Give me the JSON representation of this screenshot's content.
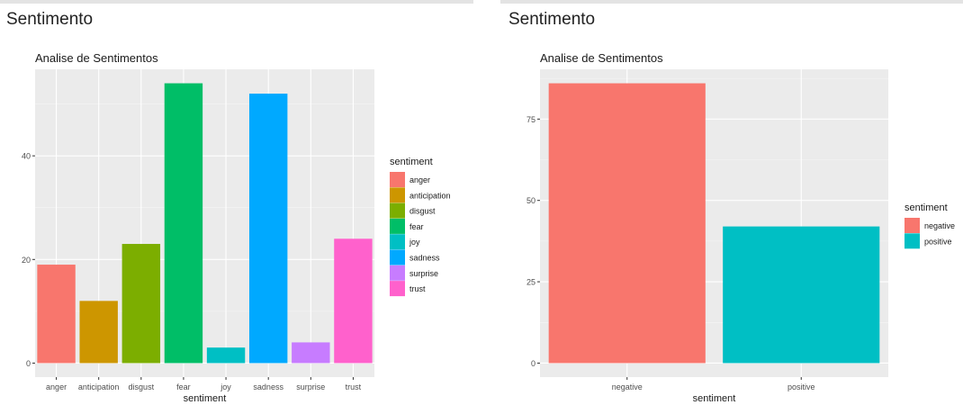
{
  "panels": [
    {
      "section_title": "Sentimento",
      "chart_data": {
        "type": "bar",
        "title": "Analise de Sentimentos",
        "xlabel": "sentiment",
        "ylabel": "",
        "categories": [
          "anger",
          "anticipation",
          "disgust",
          "fear",
          "joy",
          "sadness",
          "surprise",
          "trust"
        ],
        "values": [
          19,
          12,
          23,
          54,
          3,
          52,
          4,
          24
        ],
        "colors": [
          "#F8766D",
          "#CD9600",
          "#7CAE00",
          "#00BE67",
          "#00BFC4",
          "#00A9FF",
          "#C77CFF",
          "#FF61CC"
        ],
        "yticks": [
          0,
          20,
          40
        ],
        "ylim": [
          -2.7,
          56.7
        ],
        "grid": true,
        "legend": {
          "title": "sentiment",
          "placement": "right",
          "entries": [
            "anger",
            "anticipation",
            "disgust",
            "fear",
            "joy",
            "sadness",
            "surprise",
            "trust"
          ]
        }
      }
    },
    {
      "section_title": "Sentimento",
      "chart_data": {
        "type": "bar",
        "title": "Analise de Sentimentos",
        "xlabel": "sentiment",
        "ylabel": "",
        "categories": [
          "negative",
          "positive"
        ],
        "values": [
          86,
          42
        ],
        "colors": [
          "#F8766D",
          "#00BFC4"
        ],
        "yticks": [
          0,
          25,
          50,
          75
        ],
        "ylim": [
          -4.3,
          90.3
        ],
        "grid": true,
        "legend": {
          "title": "sentiment",
          "placement": "right",
          "entries": [
            "negative",
            "positive"
          ]
        }
      }
    }
  ]
}
